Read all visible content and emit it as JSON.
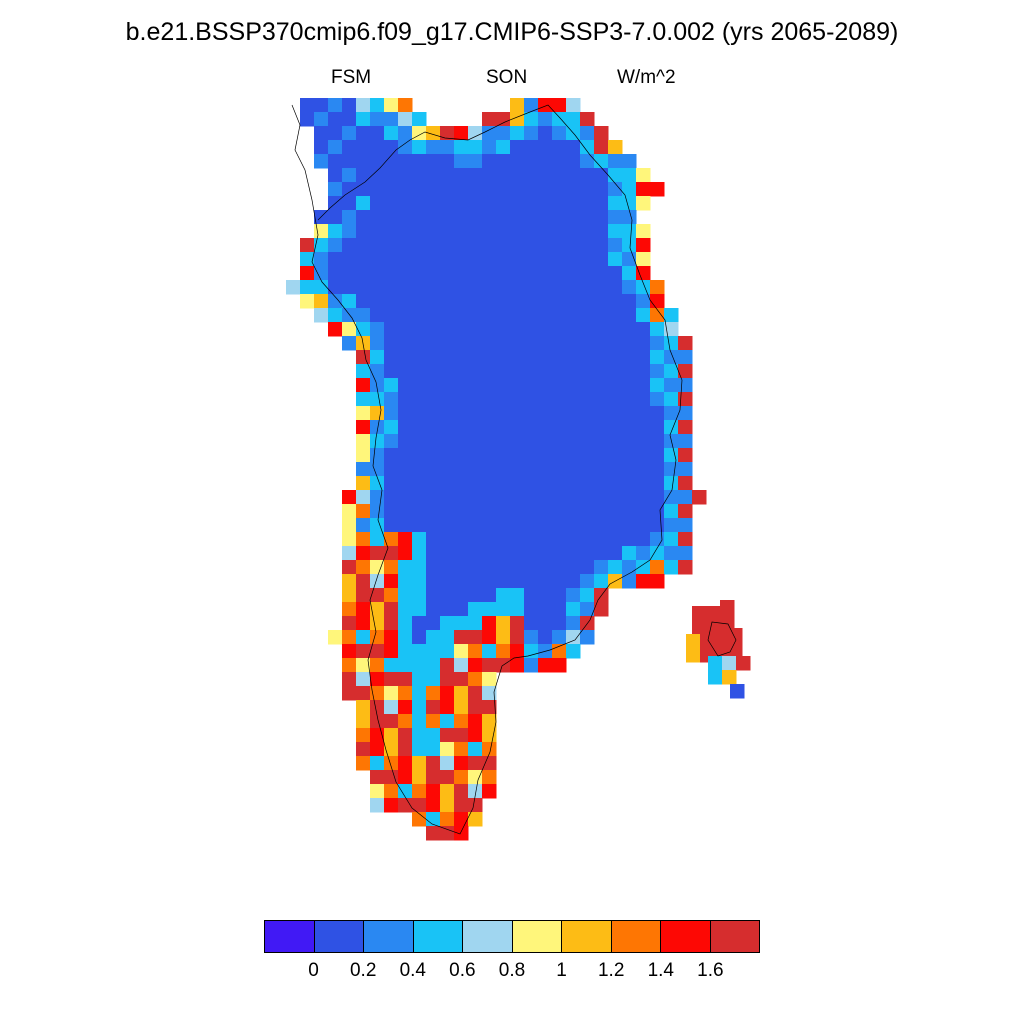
{
  "title": "b.e21.BSSP370cmip6.f09_g17.CMIP6-SSP3-7.0.002 (yrs 2065-2089)",
  "subtitle_left": "FSM",
  "subtitle_center": "SON",
  "subtitle_right": "W/m^2",
  "colorbar": {
    "colors": [
      "#4119f5",
      "#2f52e4",
      "#2a88f2",
      "#19c3f6",
      "#a0d6f0",
      "#fff67b",
      "#fdbc15",
      "#fe7603",
      "#fd0804",
      "#d62d2e"
    ],
    "labels": [
      "0",
      "0.2",
      "0.4",
      "0.6",
      "0.8",
      "1",
      "1.2",
      "1.4",
      "1.6"
    ]
  },
  "map_data": {
    "region": "Greenland",
    "variable": "FSM",
    "season": "SON",
    "units": "W/m^2",
    "interior_class": 1,
    "coast_pattern_south": [
      9,
      9,
      8,
      7,
      9,
      6,
      5,
      8,
      9,
      7,
      6,
      4,
      3,
      9,
      8,
      7
    ],
    "coast_pattern_west": [
      5,
      6,
      9,
      8,
      4,
      3,
      5,
      7,
      8,
      5,
      4,
      3,
      2,
      6
    ],
    "coast_pattern_east": [
      9,
      8,
      6,
      4,
      3,
      2,
      5,
      9,
      7,
      6,
      3,
      2,
      9,
      8
    ]
  }
}
